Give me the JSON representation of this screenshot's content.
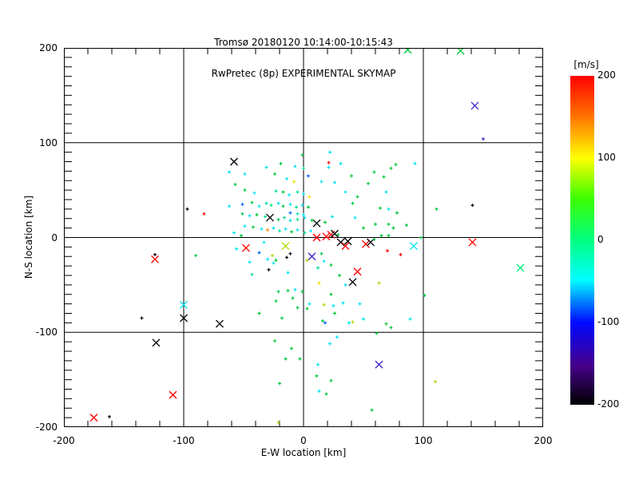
{
  "title": {
    "line1": "Tromsø 20180120 10:14:00-10:15:43",
    "line2": "RwPretec (8p) EXPERIMENTAL SKYMAP"
  },
  "axes": {
    "xlabel": "E-W location [km]",
    "ylabel": "N-S location [km]",
    "xlim": [
      -200,
      200
    ],
    "ylim": [
      -200,
      200
    ],
    "xticks": [
      -200,
      -100,
      0,
      100,
      200
    ],
    "yticks": [
      -200,
      -100,
      0,
      100,
      200
    ],
    "minor_step_x": 20,
    "minor_step_y": 10,
    "grid": true
  },
  "colorbar": {
    "label": "[m/s]",
    "ticks": [
      200,
      100,
      0,
      -100,
      -200
    ],
    "min": -200,
    "max": 200,
    "gradient": [
      [
        "#FF0000",
        0
      ],
      [
        "#FF7000",
        0.12
      ],
      [
        "#FFFF00",
        0.25
      ],
      [
        "#40FF00",
        0.37
      ],
      [
        "#00FF80",
        0.5
      ],
      [
        "#00FFFF",
        0.62
      ],
      [
        "#0008FF",
        0.75
      ],
      [
        "#46008C",
        0.88
      ],
      [
        "#000000",
        1
      ]
    ]
  },
  "palette": {
    "black": "#000000",
    "red": "#FF0000",
    "orange": "#FF8C00",
    "yellow": "#F0E000",
    "ygreen": "#AADC00",
    "green": "#00C83C",
    "springgreen": "#00EB78",
    "teal": "#00DCA0",
    "cyan": "#00E5F0",
    "blue": "#0064FF",
    "navy": "#3C28C8"
  },
  "chart_data": {
    "type": "scatter",
    "title": "Tromsø 20180120 10:14:00-10:15:43 / RwPretec (8p) EXPERIMENTAL SKYMAP",
    "xlabel": "E-W location [km]",
    "ylabel": "N-S location [km]",
    "xlim": [
      -200,
      200
    ],
    "ylim": [
      -200,
      200
    ],
    "color_units": "m/s",
    "marker_types": {
      "p": "small-plus-echo-point",
      "x": "large-cross-point"
    },
    "points": [
      [
        -58,
        80,
        "black",
        "x"
      ],
      [
        87,
        198,
        "green",
        "x"
      ],
      [
        131,
        197,
        "green",
        "x"
      ],
      [
        143,
        139,
        "navy",
        "x"
      ],
      [
        -124,
        -23,
        "red",
        "x"
      ],
      [
        92,
        -9,
        "cyan",
        "x"
      ],
      [
        141,
        -5,
        "red",
        "x"
      ],
      [
        181,
        -32,
        "springgreen",
        "x"
      ],
      [
        -100,
        -71,
        "cyan",
        "x"
      ],
      [
        -100,
        -85,
        "black",
        "x"
      ],
      [
        -70,
        -91,
        "black",
        "x"
      ],
      [
        -123,
        -111,
        "black",
        "x"
      ],
      [
        -109,
        -166,
        "red",
        "x"
      ],
      [
        -175,
        -190,
        "red",
        "x"
      ],
      [
        41,
        -47,
        "black",
        "x"
      ],
      [
        63,
        -134,
        "navy",
        "x"
      ],
      [
        -28,
        21,
        "black",
        "x"
      ],
      [
        11,
        15,
        "black",
        "x"
      ],
      [
        11,
        0,
        "red",
        "x"
      ],
      [
        19,
        1,
        "red",
        "x"
      ],
      [
        23,
        3,
        "red",
        "x"
      ],
      [
        26,
        4,
        "black",
        "x"
      ],
      [
        31,
        -5,
        "black",
        "x"
      ],
      [
        37,
        -4,
        "black",
        "x"
      ],
      [
        35,
        -9,
        "red",
        "x"
      ],
      [
        52,
        -7,
        "red",
        "x"
      ],
      [
        56,
        -5,
        "black",
        "x"
      ],
      [
        -48,
        -11,
        "red",
        "x"
      ],
      [
        -15,
        -9,
        "ygreen",
        "x"
      ],
      [
        7,
        -20,
        "navy",
        "x"
      ],
      [
        45,
        -36,
        "red",
        "x"
      ],
      [
        -1,
        87,
        "green",
        "p"
      ],
      [
        22,
        90,
        "cyan",
        "p"
      ],
      [
        21,
        79,
        "red",
        "p"
      ],
      [
        150,
        104,
        "navy",
        "p"
      ],
      [
        -19,
        78,
        "green",
        "p"
      ],
      [
        21,
        74,
        "cyan",
        "p"
      ],
      [
        31,
        78,
        "cyan",
        "p"
      ],
      [
        -31,
        74,
        "cyan",
        "p"
      ],
      [
        -24,
        67,
        "green",
        "p"
      ],
      [
        -49,
        67,
        "cyan",
        "p"
      ],
      [
        -7,
        75,
        "cyan",
        "p"
      ],
      [
        0,
        73,
        "teal",
        "p"
      ],
      [
        4,
        65,
        "blue",
        "p"
      ],
      [
        -14,
        62,
        "cyan",
        "p"
      ],
      [
        -8,
        59,
        "yellow",
        "p"
      ],
      [
        15,
        59,
        "cyan",
        "p"
      ],
      [
        26,
        58,
        "cyan",
        "p"
      ],
      [
        40,
        65,
        "green",
        "p"
      ],
      [
        54,
        57,
        "green",
        "p"
      ],
      [
        59,
        69,
        "green",
        "p"
      ],
      [
        67,
        64,
        "green",
        "p"
      ],
      [
        73,
        73,
        "green",
        "p"
      ],
      [
        77,
        77,
        "green",
        "p"
      ],
      [
        93,
        78,
        "cyan",
        "p"
      ],
      [
        -62,
        69,
        "cyan",
        "p"
      ],
      [
        -49,
        50,
        "green",
        "p"
      ],
      [
        -41,
        47,
        "cyan",
        "p"
      ],
      [
        -23,
        49,
        "teal",
        "p"
      ],
      [
        -17,
        48,
        "green",
        "p"
      ],
      [
        -12,
        45,
        "cyan",
        "p"
      ],
      [
        -5,
        48,
        "teal",
        "p"
      ],
      [
        0,
        46,
        "cyan",
        "p"
      ],
      [
        5,
        43,
        "yellow",
        "p"
      ],
      [
        35,
        48,
        "cyan",
        "p"
      ],
      [
        45,
        43,
        "green",
        "p"
      ],
      [
        41,
        36,
        "green",
        "p"
      ],
      [
        69,
        48,
        "cyan",
        "p"
      ],
      [
        -57,
        56,
        "green",
        "p"
      ],
      [
        -51,
        35,
        "blue",
        "p"
      ],
      [
        -43,
        37,
        "green",
        "p"
      ],
      [
        -37,
        33,
        "cyan",
        "p"
      ],
      [
        -31,
        36,
        "teal",
        "p"
      ],
      [
        -27,
        34,
        "springgreen",
        "p"
      ],
      [
        -21,
        36,
        "cyan",
        "p"
      ],
      [
        -17,
        33,
        "green",
        "p"
      ],
      [
        -11,
        35,
        "cyan",
        "p"
      ],
      [
        -6,
        32,
        "teal",
        "p"
      ],
      [
        -1,
        34,
        "cyan",
        "p"
      ],
      [
        4,
        32,
        "green",
        "p"
      ],
      [
        24,
        22,
        "cyan",
        "p"
      ],
      [
        43,
        21,
        "cyan",
        "p"
      ],
      [
        -62,
        33,
        "cyan",
        "p"
      ],
      [
        71,
        30,
        "cyan",
        "p"
      ],
      [
        78,
        26,
        "green",
        "p"
      ],
      [
        64,
        31,
        "green",
        "p"
      ],
      [
        111,
        30,
        "green",
        "p"
      ],
      [
        141,
        34,
        "black",
        "p"
      ],
      [
        -97,
        30,
        "black",
        "p"
      ],
      [
        -83,
        25,
        "red",
        "p"
      ],
      [
        -11,
        26,
        "blue",
        "p"
      ],
      [
        -5,
        25,
        "teal",
        "p"
      ],
      [
        0,
        24,
        "cyan",
        "p"
      ],
      [
        -51,
        25,
        "green",
        "p"
      ],
      [
        -45,
        23,
        "cyan",
        "p"
      ],
      [
        -39,
        24,
        "green",
        "p"
      ],
      [
        -32,
        22,
        "teal",
        "p"
      ],
      [
        -21,
        19,
        "green",
        "p"
      ],
      [
        -16,
        21,
        "teal",
        "p"
      ],
      [
        -11,
        18,
        "cyan",
        "p"
      ],
      [
        -5,
        19,
        "springgreen",
        "p"
      ],
      [
        1,
        21,
        "cyan",
        "p"
      ],
      [
        7,
        18,
        "green",
        "p"
      ],
      [
        18,
        16,
        "green",
        "p"
      ],
      [
        60,
        14,
        "green",
        "p"
      ],
      [
        71,
        14,
        "green",
        "p"
      ],
      [
        75,
        10,
        "green",
        "p"
      ],
      [
        86,
        13,
        "green",
        "p"
      ],
      [
        50,
        10,
        "green",
        "p"
      ],
      [
        -49,
        12,
        "cyan",
        "p"
      ],
      [
        -42,
        11,
        "green",
        "p"
      ],
      [
        -35,
        9,
        "cyan",
        "p"
      ],
      [
        -30,
        8,
        "orange",
        "p"
      ],
      [
        -25,
        10,
        "cyan",
        "p"
      ],
      [
        -20,
        7,
        "teal",
        "p"
      ],
      [
        -15,
        9,
        "cyan",
        "p"
      ],
      [
        -10,
        6,
        "green",
        "p"
      ],
      [
        -5,
        8,
        "cyan",
        "p"
      ],
      [
        1,
        5,
        "teal",
        "p"
      ],
      [
        6,
        7,
        "cyan",
        "p"
      ],
      [
        -58,
        5,
        "cyan",
        "p"
      ],
      [
        -52,
        2,
        "green",
        "p"
      ],
      [
        29,
        3,
        "green",
        "p"
      ],
      [
        65,
        2,
        "green",
        "p"
      ],
      [
        71,
        2,
        "green",
        "p"
      ],
      [
        98,
        0,
        "green",
        "p"
      ],
      [
        59,
        -2,
        "green",
        "p"
      ],
      [
        70,
        -14,
        "red",
        "p"
      ],
      [
        81,
        -18,
        "red",
        "p"
      ],
      [
        -90,
        -19,
        "green",
        "p"
      ],
      [
        -124,
        -18,
        "black",
        "p"
      ],
      [
        -56,
        -12,
        "cyan",
        "p"
      ],
      [
        -45,
        -26,
        "cyan",
        "p"
      ],
      [
        -37,
        -16,
        "blue",
        "p"
      ],
      [
        -33,
        -5,
        "cyan",
        "p"
      ],
      [
        -30,
        -23,
        "cyan",
        "p"
      ],
      [
        -26,
        -19,
        "ygreen",
        "p"
      ],
      [
        -25,
        -27,
        "cyan",
        "p"
      ],
      [
        -23,
        -24,
        "green",
        "p"
      ],
      [
        -14,
        -21,
        "black",
        "p"
      ],
      [
        -11,
        -17,
        "black",
        "p"
      ],
      [
        -13,
        -37,
        "cyan",
        "p"
      ],
      [
        -29,
        -34,
        "black",
        "p"
      ],
      [
        -43,
        -39,
        "teal",
        "p"
      ],
      [
        12,
        -32,
        "teal",
        "p"
      ],
      [
        23,
        -29,
        "green",
        "p"
      ],
      [
        30,
        -40,
        "green",
        "p"
      ],
      [
        3,
        -24,
        "ygreen",
        "p"
      ],
      [
        15,
        -17,
        "green",
        "p"
      ],
      [
        17,
        -25,
        "cyan",
        "p"
      ],
      [
        13,
        -48,
        "yellow",
        "p"
      ],
      [
        35,
        -50,
        "cyan",
        "p"
      ],
      [
        63,
        -48,
        "ygreen",
        "p"
      ],
      [
        -21,
        -57,
        "green",
        "p"
      ],
      [
        -13,
        -56,
        "green",
        "p"
      ],
      [
        -7,
        -55,
        "cyan",
        "p"
      ],
      [
        -1,
        -57,
        "green",
        "p"
      ],
      [
        23,
        -60,
        "green",
        "p"
      ],
      [
        -23,
        -67,
        "green",
        "p"
      ],
      [
        -9,
        -64,
        "green",
        "p"
      ],
      [
        5,
        -70,
        "cyan",
        "p"
      ],
      [
        17,
        -71,
        "ygreen",
        "p"
      ],
      [
        25,
        -72,
        "cyan",
        "p"
      ],
      [
        33,
        -69,
        "cyan",
        "p"
      ],
      [
        47,
        -70,
        "cyan",
        "p"
      ],
      [
        -5,
        -74,
        "green",
        "p"
      ],
      [
        3,
        -75,
        "green",
        "p"
      ],
      [
        26,
        -80,
        "green",
        "p"
      ],
      [
        16,
        -88,
        "green",
        "p"
      ],
      [
        18,
        -90,
        "blue",
        "p"
      ],
      [
        -37,
        -80,
        "green",
        "p"
      ],
      [
        -18,
        -85,
        "green",
        "p"
      ],
      [
        41,
        -89,
        "ygreen",
        "p"
      ],
      [
        38,
        -90,
        "cyan",
        "p"
      ],
      [
        50,
        -86,
        "cyan",
        "p"
      ],
      [
        61,
        -101,
        "green",
        "p"
      ],
      [
        28,
        -105,
        "cyan",
        "p"
      ],
      [
        -24,
        -109,
        "green",
        "p"
      ],
      [
        -10,
        -117,
        "green",
        "p"
      ],
      [
        22,
        -112,
        "cyan",
        "p"
      ],
      [
        -15,
        -128,
        "green",
        "p"
      ],
      [
        -3,
        -128,
        "green",
        "p"
      ],
      [
        12,
        -134,
        "cyan",
        "p"
      ],
      [
        11,
        -146,
        "green",
        "p"
      ],
      [
        -20,
        -154,
        "green",
        "p"
      ],
      [
        23,
        -151,
        "green",
        "p"
      ],
      [
        19,
        -165,
        "green",
        "p"
      ],
      [
        13,
        -162,
        "cyan",
        "p"
      ],
      [
        57,
        -182,
        "green",
        "p"
      ],
      [
        -21,
        -195,
        "ygreen",
        "p"
      ],
      [
        101,
        -61,
        "green",
        "p"
      ],
      [
        89,
        -86,
        "cyan",
        "p"
      ],
      [
        69,
        -91,
        "green",
        "p"
      ],
      [
        73,
        -95,
        "green",
        "p"
      ],
      [
        110,
        -152,
        "ygreen",
        "p"
      ],
      [
        -135,
        -85,
        "black",
        "p"
      ],
      [
        -162,
        -189,
        "black",
        "p"
      ]
    ]
  }
}
